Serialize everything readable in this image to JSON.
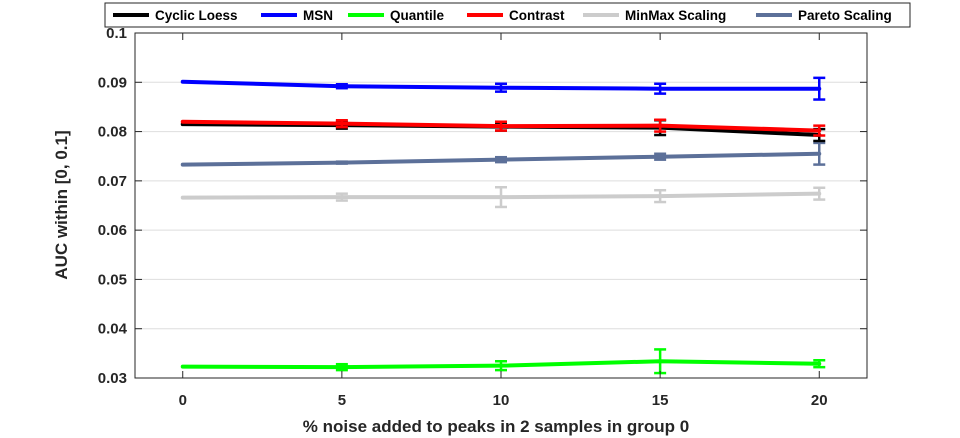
{
  "chart_data": {
    "type": "line",
    "xlabel": "% noise added to peaks in 2 samples in group 0",
    "ylabel": "AUC within [0, 0.1]",
    "x": [
      0,
      5,
      10,
      15,
      20
    ],
    "x_tick_labels": [
      "0",
      "5",
      "10",
      "15",
      "20"
    ],
    "xlim": [
      -1.5,
      21.5
    ],
    "ylim": [
      0.03,
      0.1
    ],
    "y_ticks": [
      0.03,
      0.04,
      0.05,
      0.06,
      0.07,
      0.08,
      0.09,
      0.1
    ],
    "y_tick_labels": [
      "0.03",
      "0.04",
      "0.05",
      "0.06",
      "0.07",
      "0.08",
      "0.09",
      "0.1"
    ],
    "grid": "horizontal",
    "legend_position": "top, outside",
    "series": [
      {
        "name": "Cyclic Loess",
        "color": "#000000",
        "values": [
          0.0815,
          0.0813,
          0.081,
          0.0808,
          0.0793
        ],
        "errors": [
          0,
          0.0007,
          0.0008,
          0.0015,
          0.0012
        ]
      },
      {
        "name": "MSN",
        "color": "#0000ff",
        "values": [
          0.0901,
          0.0892,
          0.0889,
          0.0887,
          0.0887
        ],
        "errors": [
          0,
          0.0004,
          0.0008,
          0.001,
          0.0022
        ]
      },
      {
        "name": "Quantile",
        "color": "#00ff00",
        "values": [
          0.0323,
          0.0322,
          0.0325,
          0.0334,
          0.0329
        ],
        "errors": [
          0,
          0.0006,
          0.0009,
          0.0024,
          0.0007
        ]
      },
      {
        "name": "Contrast",
        "color": "#ff0000",
        "values": [
          0.082,
          0.0816,
          0.0811,
          0.0812,
          0.0802
        ],
        "errors": [
          0,
          0.0007,
          0.0009,
          0.0012,
          0.001
        ]
      },
      {
        "name": "MinMax Scaling",
        "color": "#cccccc",
        "values": [
          0.0666,
          0.0667,
          0.0667,
          0.0669,
          0.0674
        ],
        "errors": [
          0,
          0.0007,
          0.002,
          0.0012,
          0.0012
        ]
      },
      {
        "name": "Pareto Scaling",
        "color": "#5c7099",
        "values": [
          0.0733,
          0.0737,
          0.0743,
          0.0749,
          0.0755
        ],
        "errors": [
          0,
          0.0002,
          0.0005,
          0.0006,
          0.0022
        ]
      }
    ]
  }
}
